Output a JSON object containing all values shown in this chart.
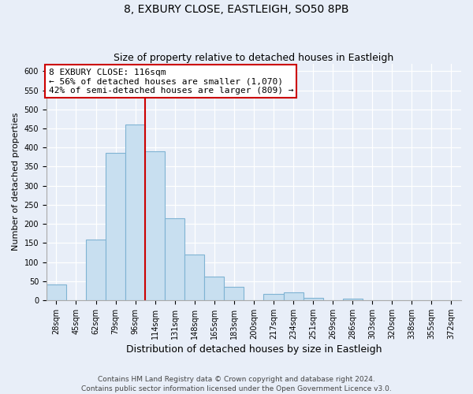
{
  "title": "8, EXBURY CLOSE, EASTLEIGH, SO50 8PB",
  "subtitle": "Size of property relative to detached houses in Eastleigh",
  "xlabel": "Distribution of detached houses by size in Eastleigh",
  "ylabel": "Number of detached properties",
  "bin_labels": [
    "28sqm",
    "45sqm",
    "62sqm",
    "79sqm",
    "96sqm",
    "114sqm",
    "131sqm",
    "148sqm",
    "165sqm",
    "183sqm",
    "200sqm",
    "217sqm",
    "234sqm",
    "251sqm",
    "269sqm",
    "286sqm",
    "303sqm",
    "320sqm",
    "338sqm",
    "355sqm",
    "372sqm"
  ],
  "bar_heights": [
    42,
    0,
    158,
    385,
    460,
    390,
    215,
    120,
    62,
    35,
    0,
    17,
    20,
    7,
    0,
    5,
    0,
    0,
    0,
    0,
    0
  ],
  "bar_color": "#c8dff0",
  "bar_edge_color": "#7fb3d3",
  "vline_x": 4.5,
  "vline_color": "#cc0000",
  "ylim": [
    0,
    620
  ],
  "yticks": [
    0,
    50,
    100,
    150,
    200,
    250,
    300,
    350,
    400,
    450,
    500,
    550,
    600
  ],
  "annotation_title": "8 EXBURY CLOSE: 116sqm",
  "annotation_line1": "← 56% of detached houses are smaller (1,070)",
  "annotation_line2": "42% of semi-detached houses are larger (809) →",
  "annotation_box_facecolor": "#ffffff",
  "annotation_box_edgecolor": "#cc0000",
  "footer_line1": "Contains HM Land Registry data © Crown copyright and database right 2024.",
  "footer_line2": "Contains public sector information licensed under the Open Government Licence v3.0.",
  "fig_facecolor": "#e8eef8",
  "axes_facecolor": "#e8eef8",
  "grid_color": "#ffffff",
  "title_fontsize": 10,
  "subtitle_fontsize": 9,
  "xlabel_fontsize": 9,
  "ylabel_fontsize": 8,
  "tick_fontsize": 7,
  "annotation_fontsize": 8,
  "footer_fontsize": 6.5
}
